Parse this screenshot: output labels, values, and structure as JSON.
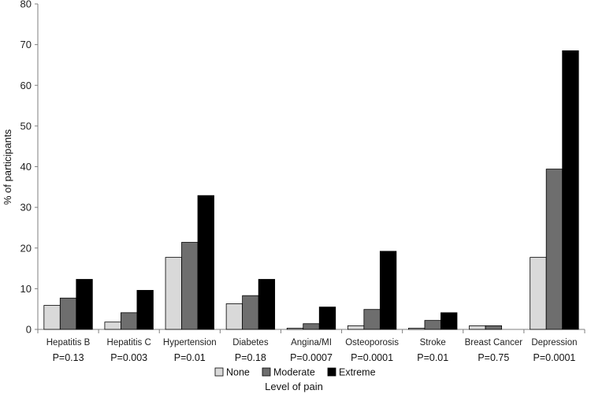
{
  "chart_data": {
    "type": "bar",
    "xlabel": "Level of pain",
    "ylabel": "% of participants",
    "ylim": [
      0,
      80
    ],
    "yticks": [
      0,
      10,
      20,
      30,
      40,
      50,
      60,
      70,
      80
    ],
    "categories": [
      "Hepatitis B",
      "Hepatitis C",
      "Hypertension",
      "Diabetes",
      "Angina/MI",
      "Osteoporosis",
      "Stroke",
      "Breast Cancer",
      "Depression"
    ],
    "p_values": [
      "P=0.13",
      "P=0.003",
      "P=0.01",
      "P=0.18",
      "P=0.0007",
      "P=0.0001",
      "P=0.01",
      "P=0.75",
      "P=0.0001"
    ],
    "series": [
      {
        "name": "None",
        "color": "#d9d9d9",
        "values": [
          5.9,
          1.8,
          17.7,
          6.3,
          0.3,
          0.9,
          0.3,
          0.9,
          17.7
        ]
      },
      {
        "name": "Moderate",
        "color": "#6e6e6e",
        "values": [
          7.7,
          4.1,
          21.4,
          8.3,
          1.4,
          4.9,
          2.2,
          0.9,
          39.4
        ]
      },
      {
        "name": "Extreme",
        "color": "#000000",
        "values": [
          12.3,
          9.6,
          32.9,
          12.3,
          5.5,
          19.2,
          4.1,
          0,
          68.5
        ]
      }
    ],
    "legend_position": "bottom",
    "grid": false
  }
}
